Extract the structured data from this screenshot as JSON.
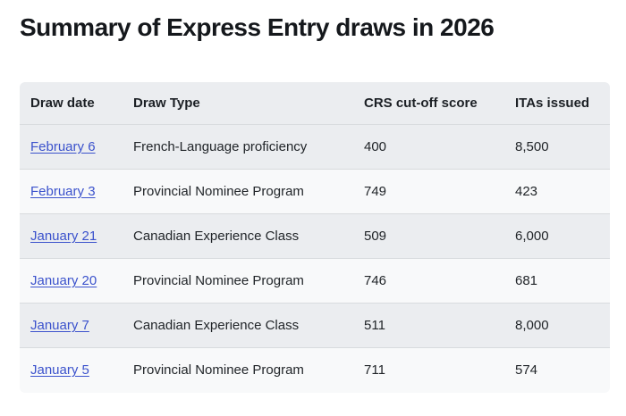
{
  "page": {
    "title": "Summary of Express Entry draws in 2026"
  },
  "table": {
    "columns": {
      "draw_date": "Draw date",
      "draw_type": "Draw Type",
      "crs_cutoff": "CRS cut-off score",
      "itas_issued": "ITAs issued"
    },
    "rows": [
      {
        "draw_date": "February 6",
        "draw_type": "French-Language proficiency",
        "crs_cutoff": "400",
        "itas_issued": "8,500"
      },
      {
        "draw_date": "February 3",
        "draw_type": "Provincial Nominee Program",
        "crs_cutoff": "749",
        "itas_issued": "423"
      },
      {
        "draw_date": "January 21",
        "draw_type": "Canadian Experience Class",
        "crs_cutoff": "509",
        "itas_issued": "6,000"
      },
      {
        "draw_date": "January 20",
        "draw_type": "Provincial Nominee Program",
        "crs_cutoff": "746",
        "itas_issued": "681"
      },
      {
        "draw_date": "January 7",
        "draw_type": "Canadian Experience Class",
        "crs_cutoff": "511",
        "itas_issued": "8,000"
      },
      {
        "draw_date": "January 5",
        "draw_type": "Provincial Nominee Program",
        "crs_cutoff": "711",
        "itas_issued": "574"
      }
    ]
  },
  "colors": {
    "header_and_odd_row_bg": "#ebedf0",
    "even_row_bg": "#f8f9fa",
    "row_border": "#d8dbde",
    "link": "#3b52cc",
    "title_text": "#15181c",
    "body_text": "#212529"
  }
}
